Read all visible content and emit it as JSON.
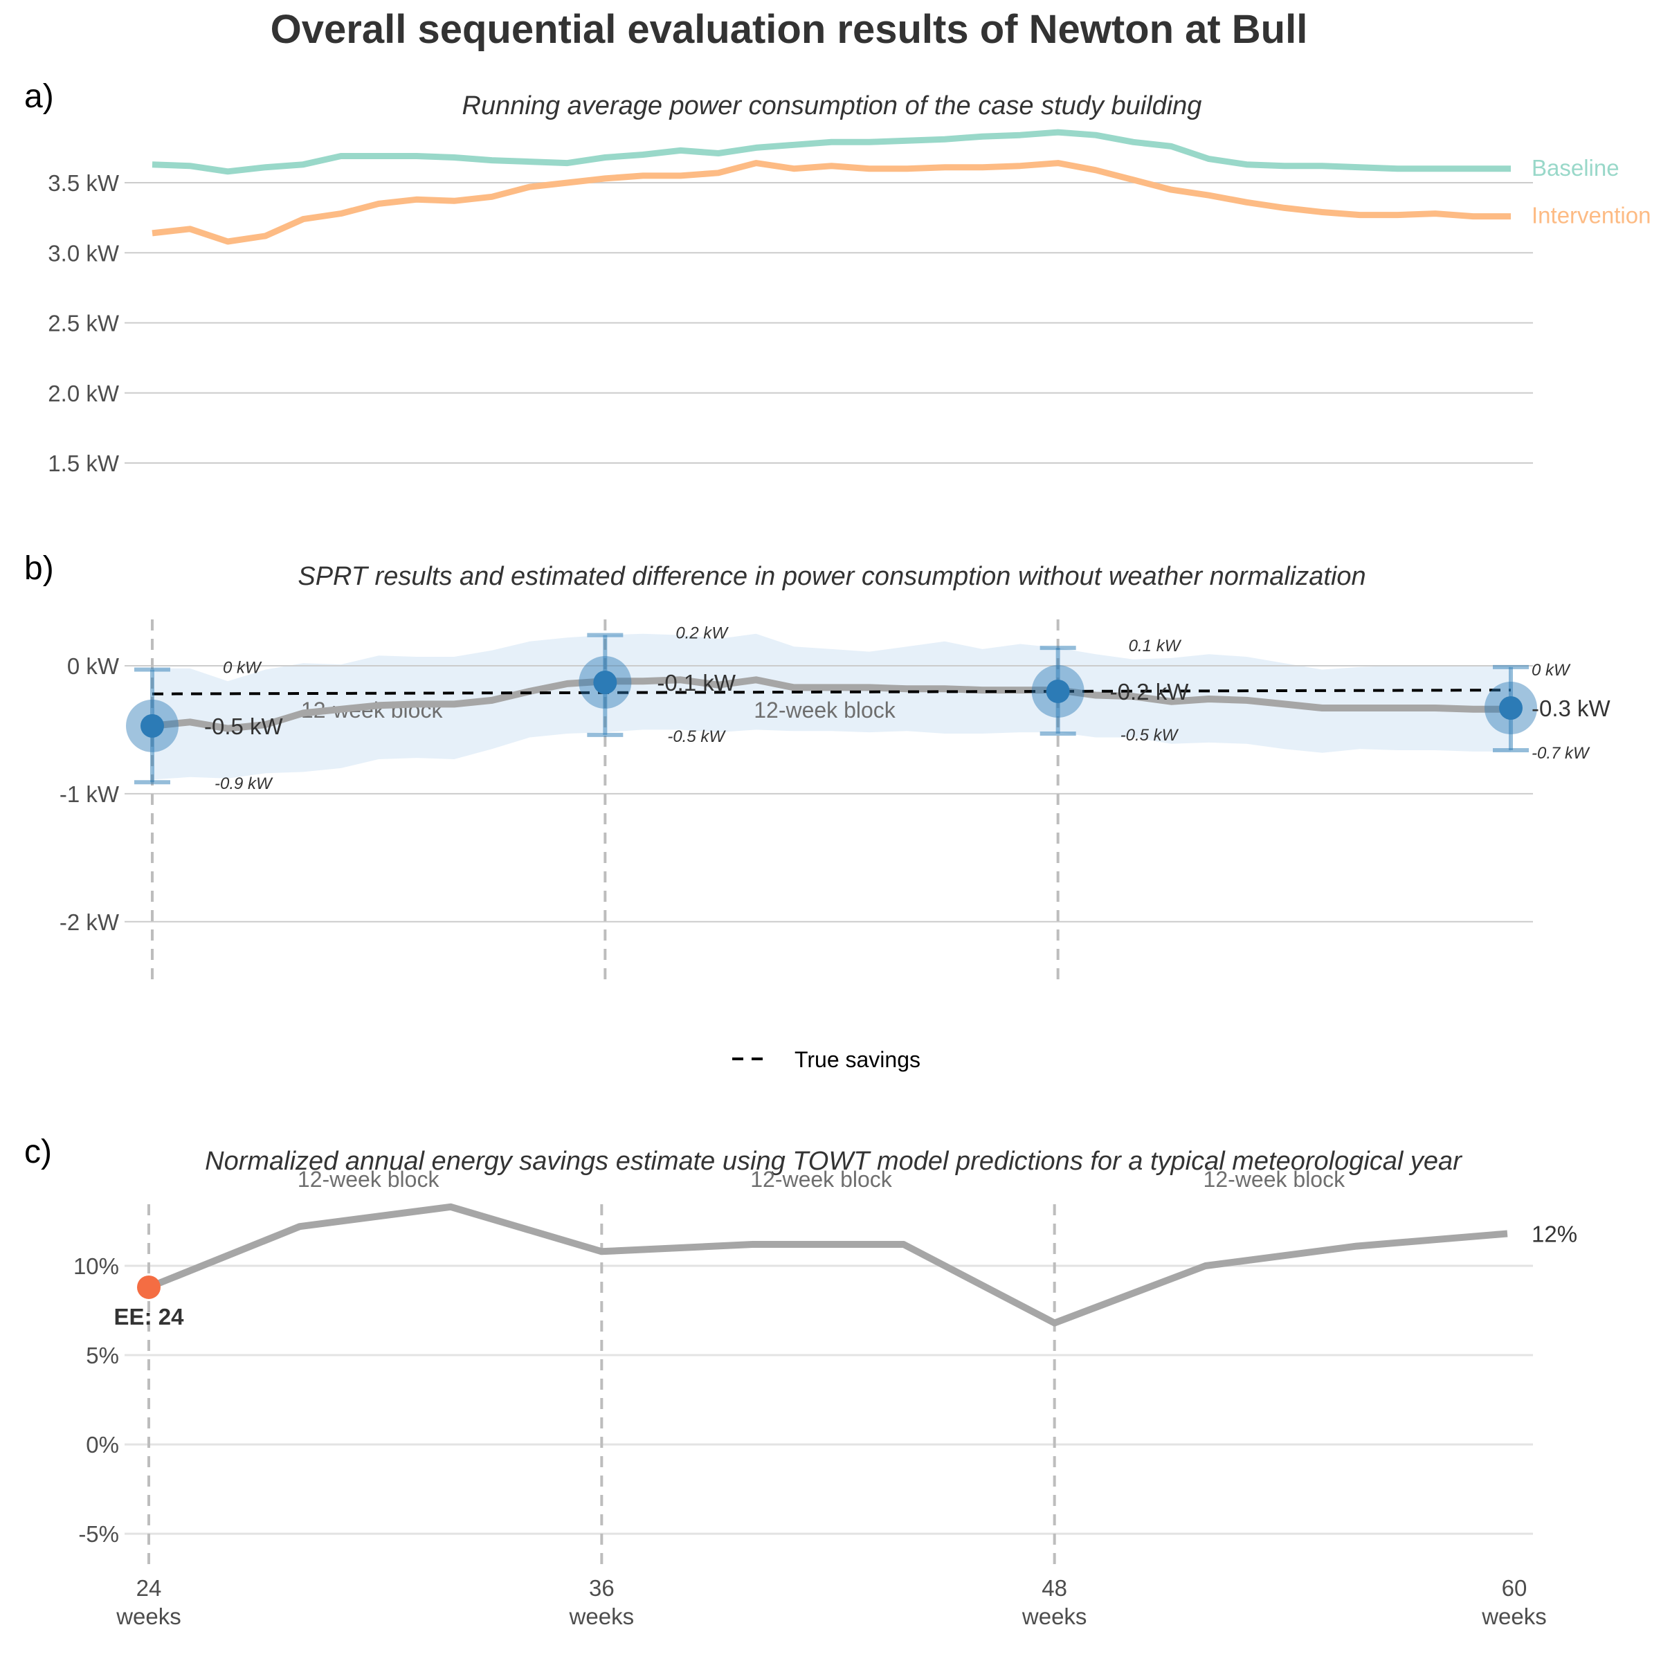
{
  "title": "Overall sequential evaluation results of Newton at Bull",
  "panel_letters": [
    "a)",
    "b)",
    "c)"
  ],
  "colors": {
    "baseline": "#99d8c9",
    "intervention": "#fdbb84",
    "sprt_point": "#2c7bb6",
    "band": "#deebf7",
    "estimate_line": "#a6a6a6",
    "ee_marker": "#f46d43",
    "grid": "#cccccc",
    "vline": "#bdbdbd"
  },
  "chart_data": [
    {
      "type": "line",
      "subtitle": "Running average power consumption of the case study building",
      "y_ticks": [
        1.5,
        2.0,
        2.5,
        3.0,
        3.5
      ],
      "y_tick_labels": [
        "1.5 kW",
        "2.0 kW",
        "2.5 kW",
        "3.0 kW",
        "3.5 kW"
      ],
      "ylim": [
        1.5,
        3.9
      ],
      "xlim": [
        24,
        60
      ],
      "grid": true,
      "end_labels": [
        "Baseline",
        "Intervention"
      ],
      "series": [
        {
          "name": "Baseline",
          "x": [
            24,
            25,
            26,
            27,
            28,
            29,
            30,
            31,
            32,
            33,
            34,
            35,
            36,
            37,
            38,
            39,
            40,
            41,
            42,
            43,
            44,
            45,
            46,
            47,
            48,
            49,
            50,
            51,
            52,
            53,
            54,
            55,
            56,
            57,
            58,
            59,
            60
          ],
          "values": [
            3.63,
            3.62,
            3.58,
            3.61,
            3.63,
            3.69,
            3.69,
            3.69,
            3.68,
            3.66,
            3.65,
            3.64,
            3.68,
            3.7,
            3.73,
            3.71,
            3.75,
            3.77,
            3.79,
            3.79,
            3.8,
            3.81,
            3.83,
            3.84,
            3.86,
            3.84,
            3.79,
            3.76,
            3.67,
            3.63,
            3.62,
            3.62,
            3.61,
            3.6,
            3.6,
            3.6,
            3.6
          ]
        },
        {
          "name": "Intervention",
          "x": [
            24,
            25,
            26,
            27,
            28,
            29,
            30,
            31,
            32,
            33,
            34,
            35,
            36,
            37,
            38,
            39,
            40,
            41,
            42,
            43,
            44,
            45,
            46,
            47,
            48,
            49,
            50,
            51,
            52,
            53,
            54,
            55,
            56,
            57,
            58,
            59,
            60
          ],
          "values": [
            3.14,
            3.17,
            3.08,
            3.12,
            3.24,
            3.28,
            3.35,
            3.38,
            3.37,
            3.4,
            3.47,
            3.5,
            3.53,
            3.55,
            3.55,
            3.57,
            3.64,
            3.6,
            3.62,
            3.6,
            3.6,
            3.61,
            3.61,
            3.62,
            3.64,
            3.59,
            3.52,
            3.45,
            3.41,
            3.36,
            3.32,
            3.29,
            3.27,
            3.27,
            3.28,
            3.26,
            3.26
          ]
        }
      ]
    },
    {
      "type": "line",
      "subtitle": "SPRT results and estimated difference in power consumption without weather normalization",
      "y_ticks": [
        -2,
        -1,
        0
      ],
      "y_tick_labels": [
        "-2 kW",
        "-1 kW",
        "0 kW"
      ],
      "ylim": [
        -2.45,
        0.4
      ],
      "xlim": [
        24,
        60
      ],
      "grid": true,
      "block_label": "12-week block",
      "legend": {
        "label": "True savings",
        "placement": "bottom-center"
      },
      "true_savings": {
        "x": [
          24,
          60
        ],
        "values": [
          -0.22,
          -0.19
        ]
      },
      "estimate": {
        "x": [
          24,
          25,
          26,
          27,
          28,
          29,
          30,
          31,
          32,
          33,
          34,
          35,
          36,
          37,
          38,
          39,
          40,
          41,
          42,
          43,
          44,
          45,
          46,
          47,
          48,
          49,
          50,
          51,
          52,
          53,
          54,
          55,
          56,
          57,
          58,
          59,
          60
        ],
        "values": [
          -0.47,
          -0.44,
          -0.49,
          -0.46,
          -0.37,
          -0.34,
          -0.31,
          -0.3,
          -0.3,
          -0.27,
          -0.2,
          -0.14,
          -0.12,
          -0.12,
          -0.11,
          -0.15,
          -0.11,
          -0.17,
          -0.17,
          -0.17,
          -0.18,
          -0.18,
          -0.19,
          -0.19,
          -0.19,
          -0.23,
          -0.24,
          -0.28,
          -0.26,
          -0.27,
          -0.3,
          -0.33,
          -0.33,
          -0.33,
          -0.33,
          -0.34,
          -0.34
        ]
      },
      "band": {
        "x": [
          24,
          25,
          26,
          27,
          28,
          29,
          30,
          31,
          32,
          33,
          34,
          35,
          36,
          37,
          38,
          39,
          40,
          41,
          42,
          43,
          44,
          45,
          46,
          47,
          48,
          49,
          50,
          51,
          52,
          53,
          54,
          55,
          56,
          57,
          58,
          59,
          60
        ],
        "upper": [
          -0.02,
          -0.02,
          -0.12,
          -0.03,
          0.02,
          0.01,
          0.08,
          0.07,
          0.07,
          0.12,
          0.19,
          0.22,
          0.24,
          0.25,
          0.24,
          0.21,
          0.25,
          0.15,
          0.13,
          0.11,
          0.15,
          0.19,
          0.13,
          0.17,
          0.14,
          0.09,
          0.05,
          0.06,
          0.09,
          0.07,
          0.02,
          -0.03,
          -0.01,
          0.0,
          0.0,
          0.0,
          0.0
        ],
        "lower": [
          -0.89,
          -0.87,
          -0.88,
          -0.84,
          -0.83,
          -0.8,
          -0.73,
          -0.72,
          -0.73,
          -0.65,
          -0.56,
          -0.53,
          -0.52,
          -0.5,
          -0.5,
          -0.52,
          -0.5,
          -0.51,
          -0.51,
          -0.52,
          -0.51,
          -0.53,
          -0.53,
          -0.52,
          -0.52,
          -0.56,
          -0.56,
          -0.61,
          -0.6,
          -0.61,
          -0.65,
          -0.68,
          -0.65,
          -0.66,
          -0.66,
          -0.67,
          -0.67
        ]
      },
      "sprt_points": [
        {
          "x": 24,
          "value": -0.47,
          "upper": -0.03,
          "lower": -0.91,
          "label": "-0.5 kW",
          "upper_label": "0 kW",
          "lower_label": "-0.9 kW"
        },
        {
          "x": 36,
          "value": -0.13,
          "upper": 0.24,
          "lower": -0.54,
          "label": "-0.1 kW",
          "upper_label": "0.2 kW",
          "lower_label": "-0.5 kW"
        },
        {
          "x": 48,
          "value": -0.2,
          "upper": 0.14,
          "lower": -0.53,
          "label": "-0.2 kW",
          "upper_label": "0.1 kW",
          "lower_label": "-0.5 kW"
        },
        {
          "x": 60,
          "value": -0.33,
          "upper": -0.01,
          "lower": -0.66,
          "label": "-0.3 kW",
          "upper_label": "0 kW",
          "lower_label": "-0.7 kW"
        }
      ]
    },
    {
      "type": "line",
      "subtitle": "Normalized annual energy savings estimate using TOWT model predictions for a typical meteorological year",
      "y_ticks": [
        -5,
        0,
        5,
        10
      ],
      "y_tick_labels": [
        "-5%",
        "0%",
        "5%",
        "10%"
      ],
      "ylim": [
        -6.7,
        14.3
      ],
      "xlim": [
        24,
        60
      ],
      "grid": true,
      "block_label": "12-week block",
      "x_ticks": [
        24,
        36,
        48,
        60
      ],
      "x_tick_labels": [
        "24",
        "36",
        "48",
        "60"
      ],
      "x_tick_sublabel": "weeks",
      "series": [
        {
          "x": [
            24,
            28,
            32,
            36,
            40,
            44,
            48,
            52,
            56,
            60
          ],
          "values": [
            8.8,
            12.2,
            13.3,
            10.8,
            11.2,
            11.2,
            6.8,
            10.0,
            11.1,
            11.8
          ]
        }
      ],
      "end_label": "12%",
      "ee_marker": {
        "x": 24,
        "value": 8.8,
        "label": "EE: 24"
      }
    }
  ]
}
